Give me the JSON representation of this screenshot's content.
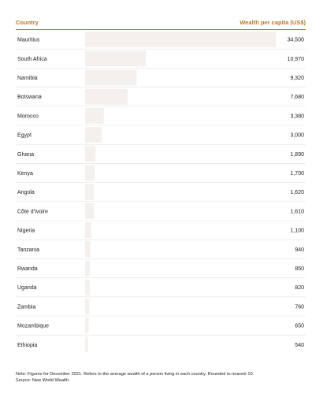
{
  "header": {
    "left_label": "Country",
    "right_label": "Wealth per capita (US$)"
  },
  "colors": {
    "accent": "#b07d27",
    "bar": "#f3f0ed",
    "divider": "#e6e2dd"
  },
  "chart_data": {
    "type": "bar",
    "orientation": "horizontal",
    "categories": [
      "Mauritius",
      "South Africa",
      "Namibia",
      "Botswana",
      "Morocco",
      "Egypt",
      "Ghana",
      "Kenya",
      "Angola",
      "Côte d'Ivoire",
      "Nigeria",
      "Tanzania",
      "Rwanda",
      "Uganda",
      "Zambia",
      "Mozambique",
      "Ethiopia"
    ],
    "values": [
      34500,
      10970,
      9320,
      7680,
      3380,
      3000,
      1890,
      1700,
      1620,
      1610,
      1100,
      940,
      850,
      820,
      760,
      650,
      540
    ],
    "value_labels": [
      "34,500",
      "10,970",
      "9,320",
      "7,680",
      "3,380",
      "3,000",
      "1,890",
      "1,700",
      "1,620",
      "1,610",
      "1,100",
      "940",
      "850",
      "820",
      "760",
      "650",
      "540"
    ],
    "xlim": [
      0,
      34500
    ],
    "grid": false
  },
  "footnote": {
    "note": "Note: Figures for December 2021. Refers to the average wealth of a person living in each country. Rounded to nearest 10.",
    "source": "Source: New World Wealth."
  }
}
